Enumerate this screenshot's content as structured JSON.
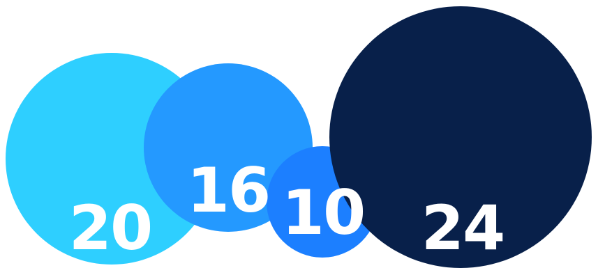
{
  "chart_data": {
    "type": "bubble",
    "title": "",
    "values": [
      20,
      16,
      10,
      24
    ],
    "labels": [
      "20",
      "16",
      "10",
      "24"
    ],
    "colors": [
      "#2ecfff",
      "#2499ff",
      "#1c7fff",
      "#08204a"
    ],
    "legend": "none",
    "grid": false
  }
}
